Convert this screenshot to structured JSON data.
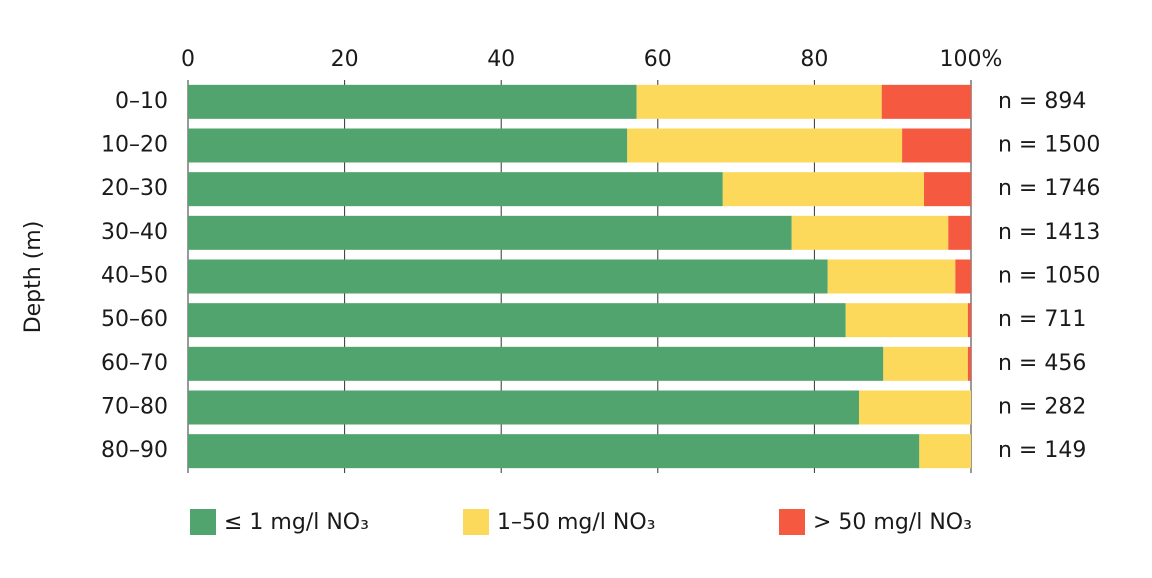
{
  "chart_data": {
    "type": "stacked-bar",
    "orientation": "horizontal",
    "y_label": "Depth (m)",
    "categories": [
      "0–10",
      "10–20",
      "20–30",
      "30–40",
      "40–50",
      "50–60",
      "60–70",
      "70–80",
      "80–90"
    ],
    "series": [
      {
        "name": "≤ 1 mg/l NO₃",
        "color": "#52a46e",
        "values": [
          57.3,
          56.1,
          68.3,
          77.1,
          81.7,
          84.0,
          88.8,
          85.7,
          93.4
        ]
      },
      {
        "name": "1–50 mg/l NO₃",
        "color": "#fcd95b",
        "values": [
          31.3,
          35.1,
          25.7,
          20.0,
          16.3,
          15.6,
          10.8,
          14.3,
          6.6
        ]
      },
      {
        "name": "> 50 mg/l NO₃",
        "color": "#f55a40",
        "values": [
          11.4,
          8.8,
          6.0,
          2.9,
          2.0,
          0.4,
          0.4,
          0,
          0
        ]
      }
    ],
    "annotations": [
      "n = 894",
      "n = 1500",
      "n = 1746",
      "n = 1413",
      "n = 1050",
      "n = 711",
      "n = 456",
      "n = 282",
      "n = 149"
    ],
    "xlim": [
      0,
      100
    ],
    "xticks": [
      0,
      20,
      40,
      60,
      80,
      {
        "value": 100,
        "label": "100%"
      }
    ],
    "grid": true,
    "legend": "bottom"
  }
}
